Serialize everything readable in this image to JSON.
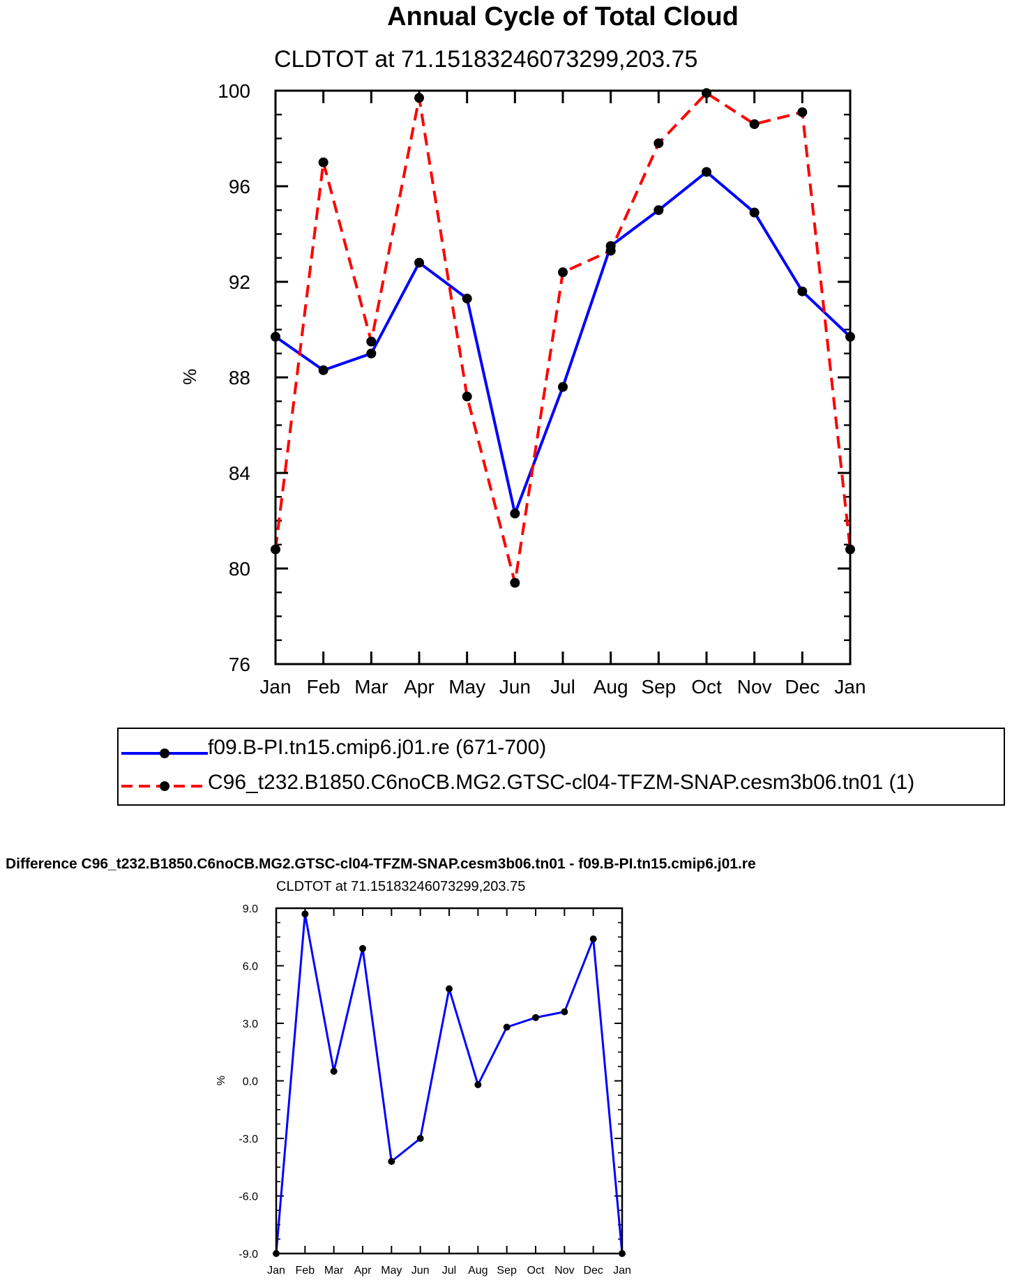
{
  "chart_data": [
    {
      "type": "line",
      "title": "Annual Cycle of Total Cloud",
      "subtitle": "CLDTOT at 71.15183246073299,203.75",
      "xlabel": "",
      "ylabel": "%",
      "ylim": [
        76,
        100
      ],
      "yticks": [
        "76",
        "80",
        "84",
        "88",
        "92",
        "96",
        "100"
      ],
      "categories": [
        "Jan",
        "Feb",
        "Mar",
        "Apr",
        "May",
        "Jun",
        "Jul",
        "Aug",
        "Sep",
        "Oct",
        "Nov",
        "Dec",
        "Jan"
      ],
      "series": [
        {
          "name": "f09.B-PI.tn15.cmip6.j01.re (671-700)",
          "color": "#0000ff",
          "style": "solid",
          "values": [
            89.7,
            88.3,
            89.0,
            92.8,
            91.3,
            82.3,
            87.6,
            93.5,
            95.0,
            96.6,
            94.9,
            91.6,
            89.7
          ]
        },
        {
          "name": "C96_t232.B1850.C6noCB.MG2.GTSC-cl04-TFZM-SNAP.cesm3b06.tn01 (1)",
          "color": "#ff0000",
          "style": "dashed",
          "values": [
            80.8,
            97.0,
            89.5,
            99.7,
            87.2,
            79.4,
            92.4,
            93.3,
            97.8,
            99.9,
            98.6,
            99.1,
            80.8
          ]
        }
      ]
    },
    {
      "type": "line",
      "title": "Difference C96_t232.B1850.C6noCB.MG2.GTSC-cl04-TFZM-SNAP.cesm3b06.tn01 - f09.B-PI.tn15.cmip6.j01.re",
      "subtitle": "CLDTOT at 71.15183246073299,203.75",
      "xlabel": "",
      "ylabel": "%",
      "ylim": [
        -9,
        9
      ],
      "yticks": [
        "-9.0",
        "-6.0",
        "-3.0",
        "0.0",
        "3.0",
        "6.0",
        "9.0"
      ],
      "categories": [
        "Jan",
        "Feb",
        "Mar",
        "Apr",
        "May",
        "Jun",
        "Jul",
        "Aug",
        "Sep",
        "Oct",
        "Nov",
        "Dec",
        "Jan"
      ],
      "series": [
        {
          "name": "Difference",
          "color": "#0000ff",
          "style": "solid",
          "values": [
            -9.0,
            8.7,
            0.5,
            6.9,
            -4.2,
            -3.0,
            4.8,
            -0.2,
            2.8,
            3.3,
            3.6,
            7.4,
            -9.0
          ]
        }
      ]
    }
  ]
}
